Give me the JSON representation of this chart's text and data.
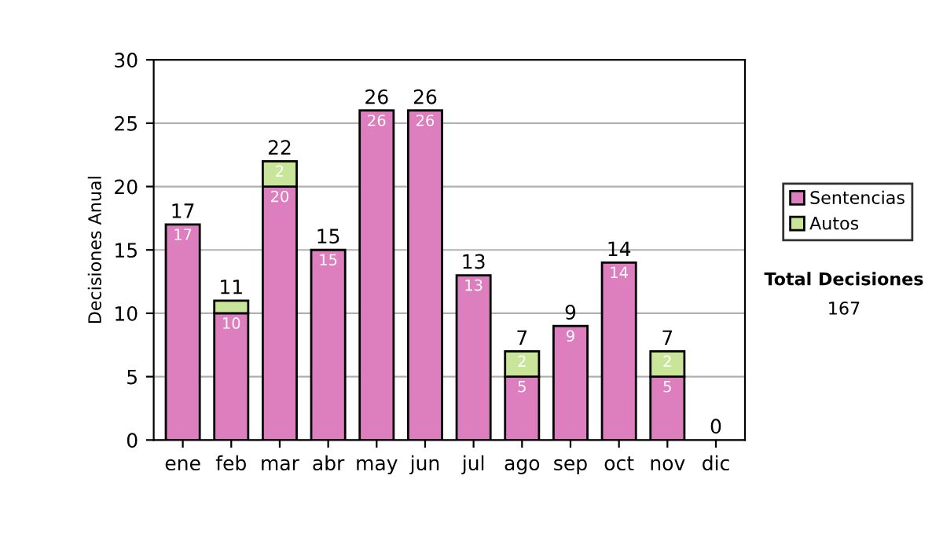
{
  "chart_data": {
    "type": "bar",
    "ylabel": "Decisiones Anual",
    "stacked": true,
    "categories": [
      "ene",
      "feb",
      "mar",
      "abr",
      "may",
      "jun",
      "jul",
      "ago",
      "sep",
      "oct",
      "nov",
      "dic"
    ],
    "series": [
      {
        "name": "Sentencias",
        "color": "#dd7ebf",
        "values": [
          17,
          10,
          20,
          15,
          26,
          26,
          13,
          5,
          9,
          14,
          5,
          0
        ],
        "value_labels": [
          "17",
          "10",
          "20",
          "15",
          "26",
          "26",
          "13",
          "5",
          "9",
          "14",
          "5",
          null
        ]
      },
      {
        "name": "Autos",
        "color": "#c9e59a",
        "values": [
          0,
          1,
          2,
          0,
          0,
          0,
          0,
          2,
          0,
          0,
          2,
          0
        ],
        "value_labels": [
          null,
          null,
          "2",
          null,
          null,
          null,
          null,
          "2",
          null,
          null,
          "2",
          null
        ]
      }
    ],
    "totals": [
      "17",
      "11",
      "22",
      "15",
      "26",
      "26",
      "13",
      "7",
      "9",
      "14",
      "7",
      "0"
    ],
    "ylim": [
      0,
      30
    ],
    "yticks": [
      0,
      5,
      10,
      15,
      20,
      25,
      30
    ],
    "grid": "y",
    "legend": "right",
    "annotations": [
      "Total Decisiones",
      "167"
    ]
  }
}
